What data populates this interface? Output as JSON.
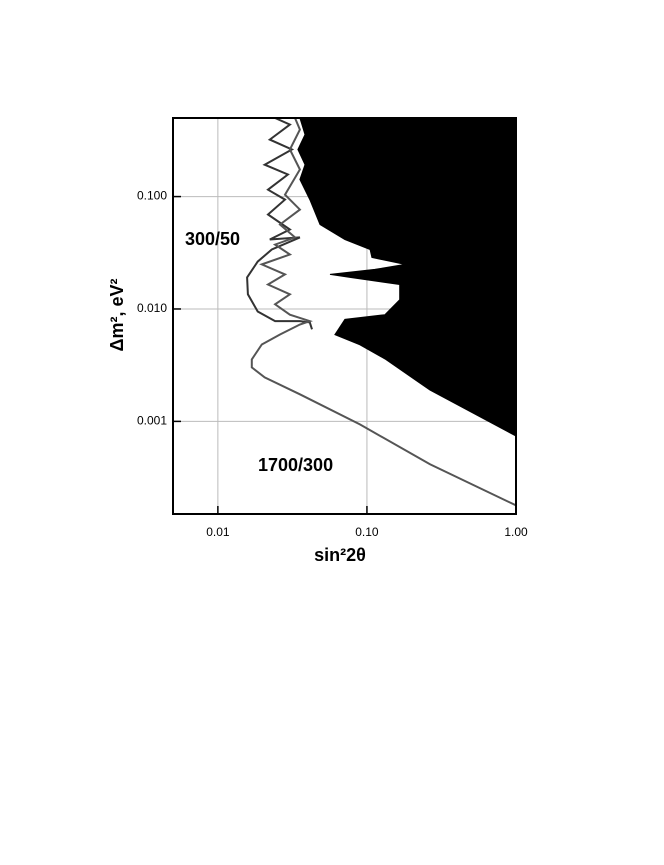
{
  "chart_data": {
    "type": "line",
    "x_label": "sin²2θ",
    "y_label": "Δm², eV²",
    "xscale": "log",
    "yscale": "log",
    "xlim": [
      0.005,
      1
    ],
    "ylim": [
      0.00015,
      0.5
    ],
    "xticks": [
      0.01,
      {
        "value": 0.1,
        "label": "0.10"
      },
      {
        "value": 1,
        "label": "1.00"
      }
    ],
    "yticks": [
      {
        "value": 0.001,
        "label": "0.001"
      },
      {
        "value": 0.01,
        "label": "0.010"
      },
      {
        "value": 0.1,
        "label": "0.100"
      }
    ],
    "grid": true,
    "series": [
      {
        "color": "#000000",
        "fill": "right",
        "x": [
          0.0355,
          0.0384,
          0.0344,
          0.0384,
          0.0355,
          0.0414,
          0.0484,
          0.0711,
          0.105,
          0.108,
          0.18,
          0.113,
          0.0565,
          0.0769,
          0.166,
          0.166,
          0.132,
          0.0711,
          0.061,
          0.0897,
          0.132,
          0.265,
          1.0
        ],
        "values": [
          0.5,
          0.356,
          0.262,
          0.192,
          0.142,
          0.094,
          0.0564,
          0.0415,
          0.0338,
          0.0287,
          0.0249,
          0.0225,
          0.0203,
          0.0191,
          0.0165,
          0.0121,
          0.0089,
          0.0081,
          0.0059,
          0.0048,
          0.0036,
          0.0019,
          0.00074
        ]
      },
      {
        "name": "300/50",
        "color": "#333333",
        "x": [
          0.0242,
          0.0304,
          0.0223,
          0.0314,
          0.0206,
          0.0295,
          0.0217,
          0.0282,
          0.0217,
          0.0304,
          0.0223,
          0.0355,
          0.023,
          0.0185,
          0.0157,
          0.0159,
          0.0185,
          0.0242,
          0.0355,
          0.0414,
          0.0428
        ],
        "values": [
          0.5,
          0.437,
          0.321,
          0.262,
          0.192,
          0.157,
          0.115,
          0.094,
          0.0692,
          0.0509,
          0.0415,
          0.0433,
          0.0338,
          0.0264,
          0.0191,
          0.0135,
          0.0095,
          0.0078,
          0.0078,
          0.0076,
          0.0066
        ]
      },
      {
        "name": "1700/300",
        "color": "#555555",
        "x": [
          1.0,
          0.265,
          0.0897,
          0.0355,
          0.0206,
          0.0169,
          0.0169,
          0.0197,
          0.0261,
          0.0355,
          0.0414,
          0.0304,
          0.0242,
          0.0304,
          0.0217,
          0.0282,
          0.0197,
          0.0304,
          0.0242,
          0.0329,
          0.0261,
          0.0355,
          0.0282,
          0.0355,
          0.0304,
          0.0355,
          0.0329
        ],
        "values": [
          0.000179,
          0.000415,
          0.00094,
          0.00174,
          0.00246,
          0.00302,
          0.00356,
          0.00483,
          0.00593,
          0.00728,
          0.0078,
          0.0089,
          0.011,
          0.0135,
          0.0165,
          0.0203,
          0.0249,
          0.0305,
          0.0374,
          0.0433,
          0.0564,
          0.0766,
          0.104,
          0.174,
          0.262,
          0.394,
          0.5
        ]
      }
    ]
  }
}
